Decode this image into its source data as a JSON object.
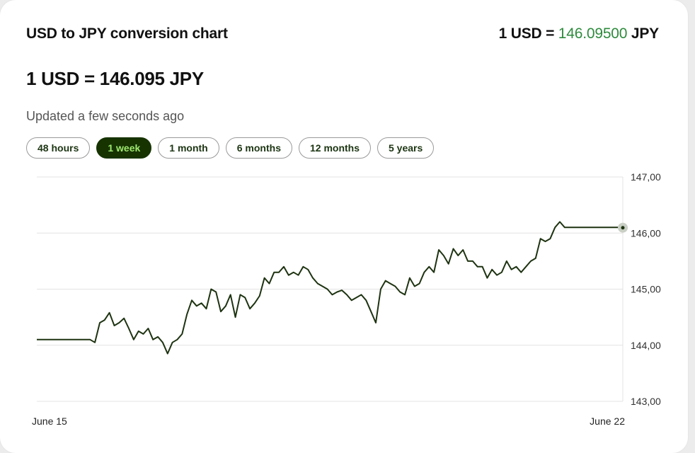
{
  "header": {
    "title": "USD to JPY conversion chart",
    "rate_prefix": "1 USD = ",
    "rate_value": "146.09500",
    "rate_suffix": " JPY"
  },
  "summary": {
    "rate_text": "1 USD = 146.095 JPY",
    "updated": "Updated a few seconds ago"
  },
  "ranges": [
    {
      "label": "48 hours",
      "active": false
    },
    {
      "label": "1 week",
      "active": true
    },
    {
      "label": "1 month",
      "active": false
    },
    {
      "label": "6 months",
      "active": false
    },
    {
      "label": "12 months",
      "active": false
    },
    {
      "label": "5 years",
      "active": false
    }
  ],
  "colors": {
    "accent_green": "#2e8b3d",
    "active_bg": "#163300",
    "active_text": "#9fe870",
    "line": "#1e3311"
  },
  "chart_data": {
    "type": "line",
    "x_labels": [
      "June 15",
      "June 22"
    ],
    "ylim": [
      143.0,
      147.0
    ],
    "y_ticks": [
      "143,00",
      "144,00",
      "145,00",
      "146,00",
      "147,00"
    ],
    "grid": true,
    "series": [
      {
        "values": [
          144.1,
          144.1,
          144.1,
          144.1,
          144.1,
          144.1,
          144.1,
          144.1,
          144.1,
          144.1,
          144.1,
          144.1,
          144.05,
          144.4,
          144.45,
          144.58,
          144.35,
          144.4,
          144.48,
          144.3,
          144.1,
          144.25,
          144.2,
          144.3,
          144.1,
          144.15,
          144.05,
          143.85,
          144.05,
          144.1,
          144.2,
          144.55,
          144.8,
          144.7,
          144.75,
          144.65,
          145.0,
          144.95,
          144.6,
          144.7,
          144.9,
          144.5,
          144.9,
          144.85,
          144.65,
          144.75,
          144.88,
          145.2,
          145.1,
          145.3,
          145.3,
          145.4,
          145.25,
          145.3,
          145.25,
          145.4,
          145.35,
          145.2,
          145.1,
          145.05,
          145.0,
          144.9,
          144.95,
          144.98,
          144.9,
          144.8,
          144.85,
          144.9,
          144.8,
          144.6,
          144.4,
          145.0,
          145.15,
          145.1,
          145.05,
          144.95,
          144.9,
          145.2,
          145.05,
          145.1,
          145.3,
          145.4,
          145.3,
          145.7,
          145.6,
          145.45,
          145.72,
          145.6,
          145.7,
          145.5,
          145.5,
          145.4,
          145.4,
          145.2,
          145.35,
          145.25,
          145.3,
          145.5,
          145.35,
          145.4,
          145.3,
          145.4,
          145.5,
          145.55,
          145.9,
          145.85,
          145.9,
          146.1,
          146.2,
          146.1,
          146.1,
          146.1,
          146.1,
          146.1,
          146.1,
          146.1,
          146.1,
          146.1,
          146.1,
          146.1,
          146.1,
          146.095
        ]
      }
    ]
  }
}
